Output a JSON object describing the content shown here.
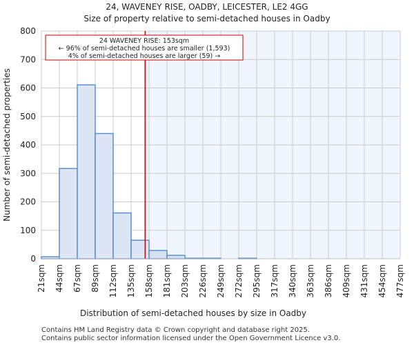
{
  "chart_data": {
    "type": "bar",
    "title": "24, WAVENEY RISE, OADBY, LEICESTER, LE2 4GG",
    "subtitle": "Size of property relative to semi-detached houses in Oadby",
    "xlabel": "Distribution of semi-detached houses by size in Oadby",
    "ylabel": "Number of semi-detached properties",
    "ylim": [
      0,
      800
    ],
    "yticks": [
      "0",
      "100",
      "200",
      "300",
      "400",
      "500",
      "600",
      "700",
      "800"
    ],
    "bin_edges": [
      21,
      44,
      67,
      89,
      112,
      135,
      158,
      181,
      203,
      226,
      249,
      272,
      295,
      317,
      340,
      363,
      386,
      409,
      431,
      454,
      477
    ],
    "tick_labels": [
      "21sqm",
      "44sqm",
      "67sqm",
      "89sqm",
      "112sqm",
      "135sqm",
      "158sqm",
      "181sqm",
      "203sqm",
      "226sqm",
      "249sqm",
      "272sqm",
      "295sqm",
      "317sqm",
      "340sqm",
      "363sqm",
      "386sqm",
      "409sqm",
      "431sqm",
      "454sqm",
      "477sqm"
    ],
    "values": [
      7,
      317,
      611,
      440,
      161,
      65,
      29,
      12,
      2,
      2,
      0,
      2,
      0,
      0,
      0,
      0,
      0,
      0,
      0,
      0
    ],
    "grid": true,
    "marker_value": 153,
    "annotation": {
      "line1": "24 WAVENEY RISE: 153sqm",
      "line2": "← 96% of semi-detached houses are smaller (1,593)",
      "line3": "4% of semi-detached houses are larger (59) →"
    },
    "colors": {
      "bar_fill": "#dce6f4",
      "bar_fill_right": "#d6e1f2",
      "bar_edge": "#5b8fd0",
      "marker": "#cc0000",
      "shade": "#f1f5fd",
      "grid": "#cccccc"
    }
  },
  "footer": {
    "line1": "Contains HM Land Registry data © Crown copyright and database right 2025.",
    "line2": "Contains public sector information licensed under the Open Government Licence v3.0."
  }
}
